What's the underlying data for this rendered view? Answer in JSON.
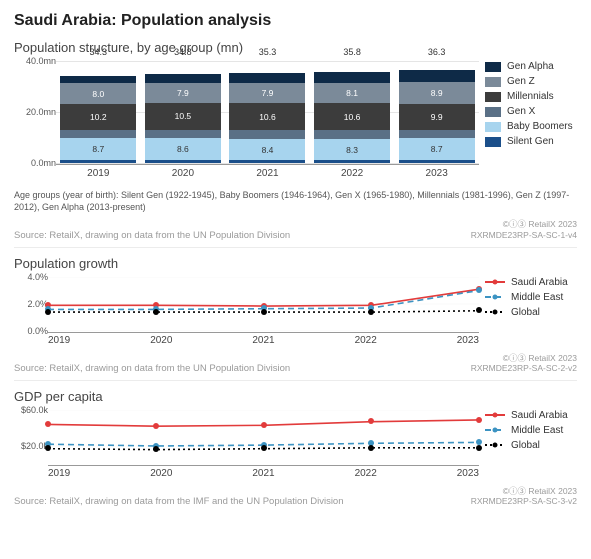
{
  "title": "Saudi Arabia: Population analysis",
  "colors": {
    "grid": "#e5e5e5",
    "axis": "#999999"
  },
  "stacked": {
    "title": "Population structure, by age group (mn)",
    "ylim": [
      0,
      40
    ],
    "ytick_step": 20,
    "ytick_suffix": "mn",
    "categories": [
      "2019",
      "2020",
      "2021",
      "2022",
      "2023"
    ],
    "series_order": [
      "silent",
      "boomers",
      "genx",
      "millennials",
      "genz",
      "alpha"
    ],
    "series_meta": {
      "alpha": {
        "label": "Gen Alpha",
        "color": "#0e2a47"
      },
      "genz": {
        "label": "Gen Z",
        "color": "#7b8a99"
      },
      "millennials": {
        "label": "Millennials",
        "color": "#3c3c3c"
      },
      "genx": {
        "label": "Gen X",
        "color": "#5a7086"
      },
      "boomers": {
        "label": "Baby Boomers",
        "color": "#a7d4ee"
      },
      "silent": {
        "label": "Silent Gen",
        "color": "#1b4f8a"
      }
    },
    "legend_order": [
      "alpha",
      "genz",
      "millennials",
      "genx",
      "boomers",
      "silent"
    ],
    "totals": [
      34.3,
      34.8,
      35.3,
      35.8,
      36.3
    ],
    "data": {
      "silent": [
        1.1,
        1.1,
        1.1,
        1.1,
        1.1
      ],
      "boomers": [
        8.7,
        8.6,
        8.4,
        8.3,
        8.7
      ],
      "genx": [
        3.2,
        3.3,
        3.3,
        3.4,
        3.3
      ],
      "millennials": [
        10.2,
        10.5,
        10.6,
        10.6,
        9.9
      ],
      "genz": [
        8.0,
        7.9,
        7.9,
        8.1,
        8.9
      ],
      "alpha": [
        3.1,
        3.4,
        4.0,
        4.3,
        4.4
      ]
    },
    "label_segments": [
      "boomers",
      "millennials",
      "genz"
    ],
    "footnote": "Age groups (year of birth): Silent Gen (1922-1945), Baby Boomers (1946-1964), Gen X (1965-1980), Millennials (1981-1996), Gen Z (1997-2012), Gen Alpha (2013-present)",
    "source": "Source: RetailX, drawing on data from the UN Population Division",
    "attrib1": "©ⓘ③ RetailX 2023",
    "attrib2": "RXRMDE23RP-SA-SC-1-v4"
  },
  "growth": {
    "title": "Population growth",
    "categories": [
      "2019",
      "2020",
      "2021",
      "2022",
      "2023"
    ],
    "ylim": [
      0,
      4
    ],
    "yticks": [
      0,
      2,
      4
    ],
    "ytick_suffix": "%",
    "series": [
      {
        "key": "sa",
        "label": "Saudi Arabia",
        "color": "#e23b3b",
        "dash": "",
        "marker": true,
        "values": [
          1.9,
          1.9,
          1.85,
          1.9,
          3.1
        ]
      },
      {
        "key": "me",
        "label": "Middle East",
        "color": "#3c93c2",
        "dash": "6,4",
        "marker": true,
        "values": [
          1.6,
          1.6,
          1.65,
          1.7,
          3.0
        ]
      },
      {
        "key": "gl",
        "label": "Global",
        "color": "#000000",
        "dash": "2,3",
        "marker": true,
        "values": [
          1.4,
          1.4,
          1.4,
          1.4,
          1.5
        ]
      }
    ],
    "source": "Source: RetailX, drawing on data from the UN Population Division",
    "attrib1": "©ⓘ③ RetailX 2023",
    "attrib2": "RXRMDE23RP-SA-SC-2-v2"
  },
  "gdp": {
    "title": "GDP per capita",
    "categories": [
      "2019",
      "2020",
      "2021",
      "2022",
      "2023"
    ],
    "ylim": [
      0,
      60
    ],
    "yticks": [
      20,
      60
    ],
    "ytick_prefix": "$",
    "ytick_suffix": "k",
    "series": [
      {
        "key": "sa",
        "label": "Saudi Arabia",
        "color": "#e23b3b",
        "dash": "",
        "marker": true,
        "values": [
          44,
          42,
          43,
          47,
          49
        ]
      },
      {
        "key": "me",
        "label": "Middle East",
        "color": "#3c93c2",
        "dash": "6,4",
        "marker": true,
        "values": [
          22,
          20,
          21,
          23,
          24
        ]
      },
      {
        "key": "gl",
        "label": "Global",
        "color": "#000000",
        "dash": "2,3",
        "marker": true,
        "values": [
          17,
          16,
          17,
          18,
          18
        ]
      }
    ],
    "source": "Source: RetailX, drawing on data from the IMF and the UN Population Division",
    "attrib1": "©ⓘ③ RetailX 2023",
    "attrib2": "RXRMDE23RP-SA-SC-3-v2"
  }
}
